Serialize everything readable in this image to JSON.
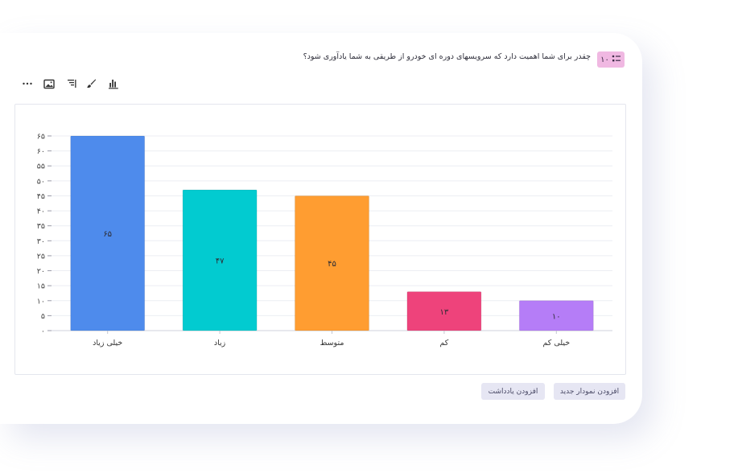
{
  "question": {
    "number": "۱۰",
    "text": "چقدر برای شما اهمیت دارد که سرویسهای دوره ای خودرو از طریقی به شما یادآوری شود؟"
  },
  "toolbar": {
    "icons": [
      "bar-chart-icon",
      "brush-icon",
      "sort-icon",
      "image-icon",
      "more-icon"
    ]
  },
  "buttons": {
    "add_chart": "افزودن نمودار جدید",
    "add_note": "افزودن یادداشت"
  },
  "chart_data": {
    "type": "bar",
    "categories": [
      "خیلی زیاد",
      "زیاد",
      "متوسط",
      "کم",
      "خیلی کم"
    ],
    "values": [
      65,
      47,
      45,
      13,
      10
    ],
    "value_labels": [
      "۶۵",
      "۴۷",
      "۴۵",
      "۱۳",
      "۱۰"
    ],
    "colors": [
      "#4e8bec",
      "#02cbd0",
      "#ff9d31",
      "#ee437b",
      "#b57df7"
    ],
    "ylim": [
      0,
      65
    ],
    "yticks": [
      0,
      5,
      10,
      15,
      20,
      25,
      30,
      35,
      40,
      45,
      50,
      55,
      60,
      65
    ],
    "ytick_labels": [
      "۰",
      "۵",
      "۱۰",
      "۱۵",
      "۲۰",
      "۲۵",
      "۳۰",
      "۳۵",
      "۴۰",
      "۴۵",
      "۵۰",
      "۵۵",
      "۶۰",
      "۶۵"
    ],
    "grid": true,
    "title": "",
    "xlabel": "",
    "ylabel": ""
  }
}
